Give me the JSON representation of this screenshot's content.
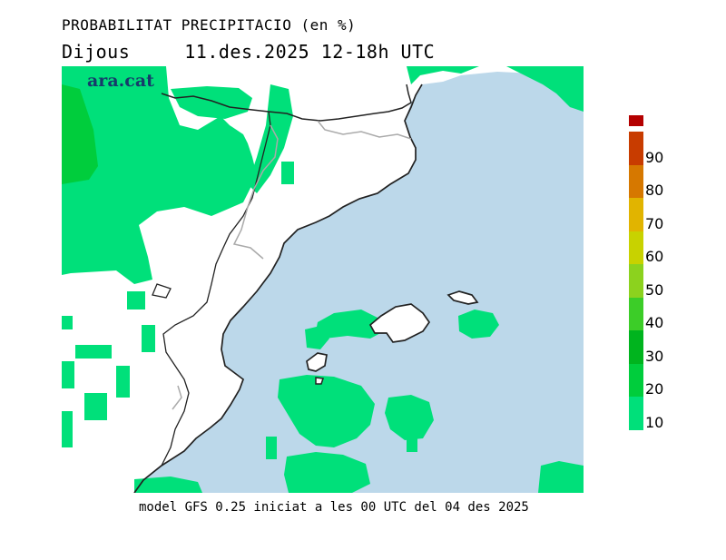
{
  "header": {
    "title": "PROBABILITAT PRECIPITACIO (en %)",
    "day": "Dijous",
    "date": "11.des.2025",
    "time": "12-18h UTC"
  },
  "brand": {
    "logo_text": "ara.cat"
  },
  "footer": {
    "text": "model GFS 0.25 iniciat a les 00 UTC del 04 des 2025"
  },
  "legend": {
    "items": [
      {
        "label": "10",
        "color": "#00e07a"
      },
      {
        "label": "20",
        "color": "#00cd3c"
      },
      {
        "label": "30",
        "color": "#00b41e"
      },
      {
        "label": "40",
        "color": "#3ccd28"
      },
      {
        "label": "50",
        "color": "#8cd21e"
      },
      {
        "label": "60",
        "color": "#c8d200"
      },
      {
        "label": "70",
        "color": "#e1b400"
      },
      {
        "label": "80",
        "color": "#d67800"
      },
      {
        "label": "90",
        "color": "#c83c00"
      },
      {
        "label": "",
        "color": "#b40000"
      }
    ]
  },
  "map": {
    "sea_color": "#bcd8ea",
    "land_color": "#ffffff",
    "precip_color": "#00e07a",
    "precip_dark_color": "#00cd3c",
    "coast_color": "#222222",
    "border_color": "#aaaaaa"
  }
}
